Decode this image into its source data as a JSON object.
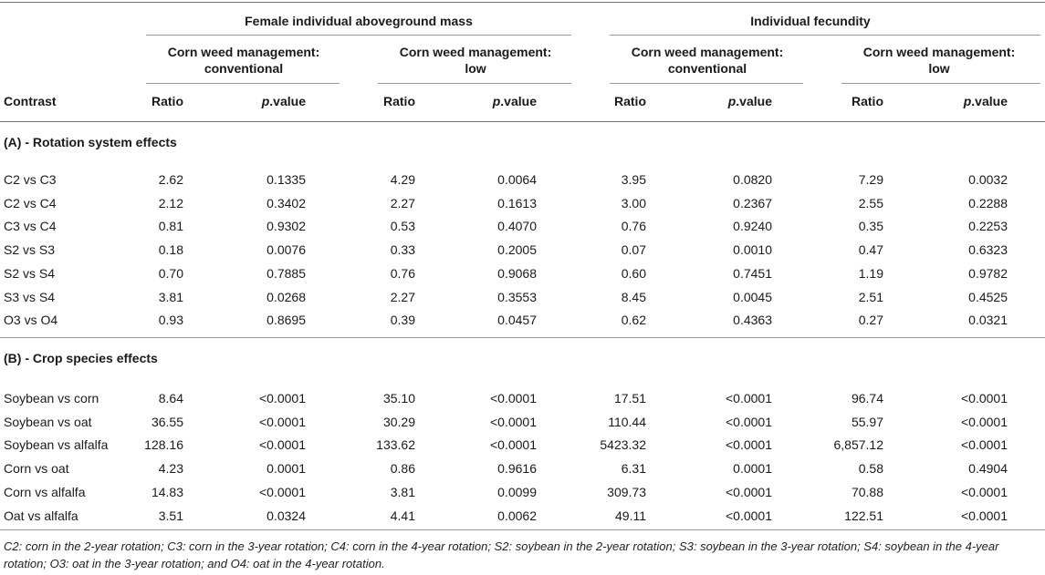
{
  "header": {
    "group_mass": "Female individual aboveground mass",
    "group_fecundity": "Individual fecundity",
    "sub_conv": [
      "Corn weed management:",
      "conventional"
    ],
    "sub_low": [
      "Corn weed management:",
      "low"
    ],
    "contrast_label": "Contrast",
    "ratio_label": "Ratio",
    "pvalue_italic": "p",
    "pvalue_rest": ".value"
  },
  "sections": [
    {
      "title": "(A) - Rotation system effects",
      "rows": [
        {
          "contrast": "C2 vs C3",
          "vals": [
            "2.62",
            "0.1335",
            "4.29",
            "0.0064",
            "3.95",
            "0.0820",
            "7.29",
            "0.0032"
          ]
        },
        {
          "contrast": "C2 vs C4",
          "vals": [
            "2.12",
            "0.3402",
            "2.27",
            "0.1613",
            "3.00",
            "0.2367",
            "2.55",
            "0.2288"
          ]
        },
        {
          "contrast": "C3 vs C4",
          "vals": [
            "0.81",
            "0.9302",
            "0.53",
            "0.4070",
            "0.76",
            "0.9240",
            "0.35",
            "0.2253"
          ]
        },
        {
          "contrast": "S2 vs S3",
          "vals": [
            "0.18",
            "0.0076",
            "0.33",
            "0.2005",
            "0.07",
            "0.0010",
            "0.47",
            "0.6323"
          ]
        },
        {
          "contrast": "S2 vs S4",
          "vals": [
            "0.70",
            "0.7885",
            "0.76",
            "0.9068",
            "0.60",
            "0.7451",
            "1.19",
            "0.9782"
          ]
        },
        {
          "contrast": "S3 vs S4",
          "vals": [
            "3.81",
            "0.0268",
            "2.27",
            "0.3553",
            "8.45",
            "0.0045",
            "2.51",
            "0.4525"
          ]
        },
        {
          "contrast": "O3 vs O4",
          "vals": [
            "0.93",
            "0.8695",
            "0.39",
            "0.0457",
            "0.62",
            "0.4363",
            "0.27",
            "0.0321"
          ]
        }
      ]
    },
    {
      "title": "(B) - Crop species effects",
      "rows": [
        {
          "contrast": "Soybean vs corn",
          "vals": [
            "8.64",
            "<0.0001",
            "35.10",
            "<0.0001",
            "17.51",
            "<0.0001",
            "96.74",
            "<0.0001"
          ]
        },
        {
          "contrast": "Soybean vs oat",
          "vals": [
            "36.55",
            "<0.0001",
            "30.29",
            "<0.0001",
            "110.44",
            "<0.0001",
            "55.97",
            "<0.0001"
          ]
        },
        {
          "contrast": "Soybean vs alfalfa",
          "vals": [
            "128.16",
            "<0.0001",
            "133.62",
            "<0.0001",
            "5423.32",
            "<0.0001",
            "6,857.12",
            "<0.0001"
          ]
        },
        {
          "contrast": "Corn vs oat",
          "vals": [
            "4.23",
            "0.0001",
            "0.86",
            "0.9616",
            "6.31",
            "0.0001",
            "0.58",
            "0.4904"
          ]
        },
        {
          "contrast": "Corn vs alfalfa",
          "vals": [
            "14.83",
            "<0.0001",
            "3.81",
            "0.0099",
            "309.73",
            "<0.0001",
            "70.88",
            "<0.0001"
          ]
        },
        {
          "contrast": "Oat vs alfalfa",
          "vals": [
            "3.51",
            "0.0324",
            "4.41",
            "0.0062",
            "49.11",
            "<0.0001",
            "122.51",
            "<0.0001"
          ]
        }
      ]
    }
  ],
  "footnote": "C2: corn in the 2-year rotation; C3: corn in the 3-year rotation; C4: corn in the 4-year rotation; S2: soybean in the 2-year rotation; S3: soybean in the 3-year rotation; S4: soybean in the 4-year rotation; O3: oat in the 3-year rotation; and O4: oat in the 4-year rotation."
}
